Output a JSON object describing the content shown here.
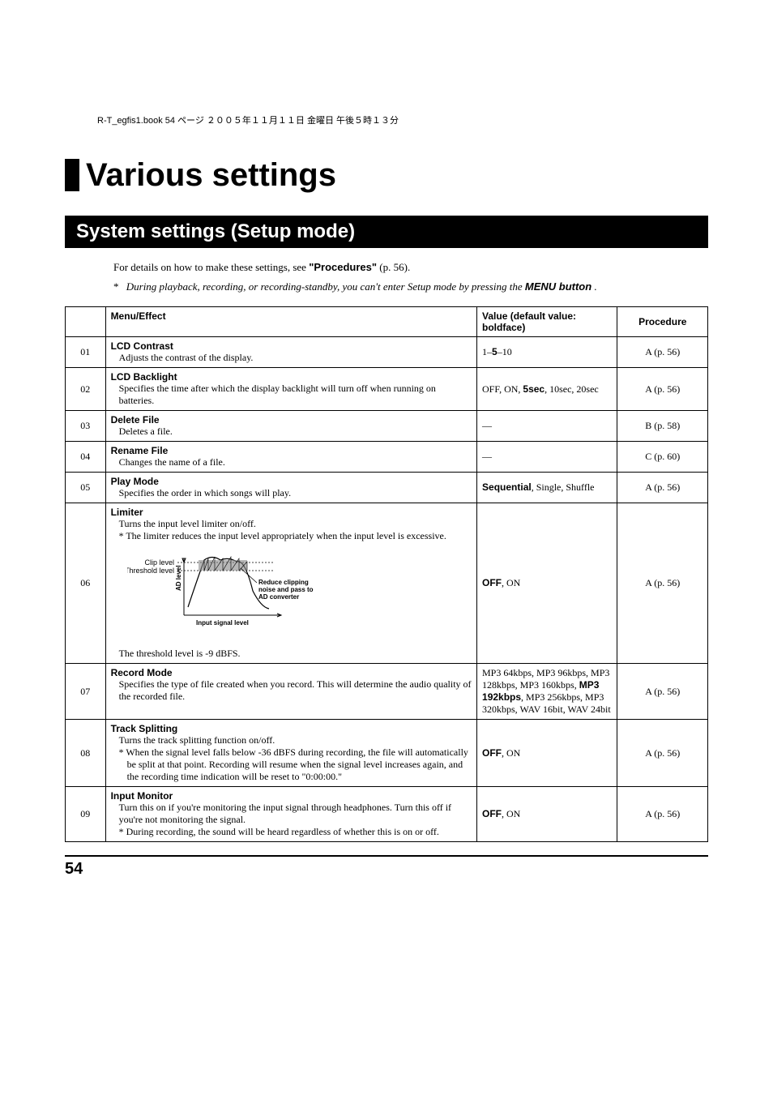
{
  "header_line": "R-T_egfis1.book 54 ページ ２００５年１１月１１日 金曜日 午後５時１３分",
  "title": "Various settings",
  "subtitle": "System settings (Setup mode)",
  "intro_prefix": "For details on how to make these settings, see",
  "intro_bold": "\"Procedures\"",
  "intro_suffix": " (p. 56).",
  "note_asterisk": "*",
  "note_text_1": "During playback, recording, or recording-standby, you can't enter Setup mode by pressing the ",
  "note_bold": "MENU button",
  "note_text_2": ".",
  "table": {
    "headers": {
      "menu": "Menu/Effect",
      "value": "Value (default value: boldface)",
      "procedure": "Procedure"
    },
    "rows": [
      {
        "num": "01",
        "title": "LCD Contrast",
        "desc": "Adjusts the contrast of the display.",
        "value_pre": "1–",
        "value_bold": "5",
        "value_post": "–10",
        "procedure": "A (p. 56)"
      },
      {
        "num": "02",
        "title": "LCD Backlight",
        "desc": "Specifies the time after which the display backlight will turn off when running on batteries.",
        "value_pre": "OFF, ON, ",
        "value_bold": "5sec",
        "value_post": ", 10sec, 20sec",
        "procedure": "A (p. 56)"
      },
      {
        "num": "03",
        "title": "Delete File",
        "desc": "Deletes a file.",
        "value_pre": "—",
        "value_bold": "",
        "value_post": "",
        "procedure": "B (p. 58)"
      },
      {
        "num": "04",
        "title": "Rename File",
        "desc": "Changes the name of a file.",
        "value_pre": "—",
        "value_bold": "",
        "value_post": "",
        "procedure": "C (p. 60)"
      },
      {
        "num": "05",
        "title": "Play Mode",
        "desc": "Specifies the order in which songs will play.",
        "value_pre": "",
        "value_bold": "Sequential",
        "value_post": ", Single, Shuffle",
        "procedure": "A (p. 56)"
      },
      {
        "num": "06",
        "title": "Limiter",
        "desc": "Turns the input level limiter on/off.",
        "sub": "* The limiter reduces the input level appropriately when the input level is excessive.",
        "footer": "The threshold level is -9 dBFS.",
        "value_pre": "",
        "value_bold": "OFF",
        "value_post": ", ON",
        "procedure": "A (p. 56)",
        "has_diagram": true
      },
      {
        "num": "07",
        "title": "Record Mode",
        "desc": "Specifies the type of file created when you record. This will determine the audio quality of the recorded file.",
        "value_pre": "MP3 64kbps, MP3 96kbps, MP3 128kbps, MP3 160kbps, ",
        "value_bold": "MP3 192kbps",
        "value_post": ", MP3 256kbps, MP3 320kbps, WAV 16bit, WAV 24bit",
        "procedure": "A (p. 56)"
      },
      {
        "num": "08",
        "title": "Track Splitting",
        "desc": "Turns the track splitting function on/off.",
        "sub": "* When the signal level falls below -36 dBFS during recording, the file will automatically be split at that point. Recording will resume when the signal level increases again, and the recording time indication will be reset to \"0:00:00.\"",
        "value_pre": "",
        "value_bold": "OFF",
        "value_post": ", ON",
        "procedure": "A (p. 56)"
      },
      {
        "num": "09",
        "title": "Input Monitor",
        "desc": "Turn this on if you're monitoring the input signal through headphones. Turn this off if you're not monitoring the signal.",
        "sub": "* During recording, the sound will be heard regardless of whether this is on or off.",
        "value_pre": "",
        "value_bold": "OFF",
        "value_post": ", ON",
        "procedure": "A (p. 56)"
      }
    ]
  },
  "diagram": {
    "clip_label": "Clip level",
    "threshold_label": "Threshold level",
    "ad_label": "AD level",
    "input_label": "Input signal level",
    "reduce_label_1": "Reduce clipping",
    "reduce_label_2": "noise and pass to",
    "reduce_label_3": "AD converter"
  },
  "page_number": "54"
}
